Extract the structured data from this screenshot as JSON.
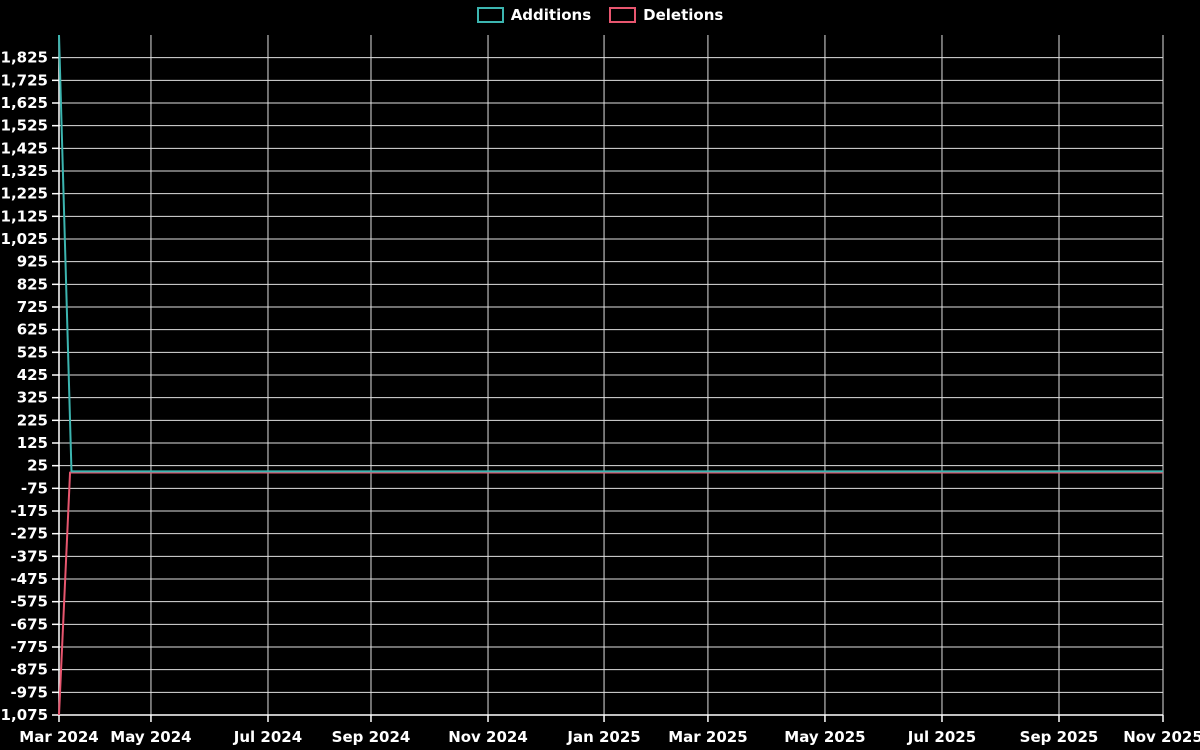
{
  "legend": {
    "position": "top-center",
    "items": [
      {
        "label": "Additions",
        "color": "#3cb5b0"
      },
      {
        "label": "Deletions",
        "color": "#e8566f"
      }
    ]
  },
  "chart_data": {
    "type": "line",
    "title": "",
    "xlabel": "",
    "ylabel": "",
    "background": "#000000",
    "grid": true,
    "gridline_color": "#e0e0e0",
    "text_color": "#ffffff",
    "legend_position": "top-center",
    "x_axis": {
      "kind": "time",
      "range_start": "Mar 2024",
      "range_end": "Nov 2025",
      "ticks": [
        {
          "label": "Mar 2024",
          "pos": 0
        },
        {
          "label": "May 2024",
          "pos": 0.0833
        },
        {
          "label": "Jul 2024",
          "pos": 0.1893
        },
        {
          "label": "Sep 2024",
          "pos": 0.2826
        },
        {
          "label": "Nov 2024",
          "pos": 0.3886
        },
        {
          "label": "Jan 2025",
          "pos": 0.4937
        },
        {
          "label": "Mar 2025",
          "pos": 0.5878
        },
        {
          "label": "May 2025",
          "pos": 0.6938
        },
        {
          "label": "Jul 2025",
          "pos": 0.7998
        },
        {
          "label": "Sep 2025",
          "pos": 0.9058
        },
        {
          "label": "Nov 2025",
          "pos": 1
        }
      ]
    },
    "y_axis": {
      "min": -1075,
      "max": 1925,
      "interval": 100,
      "ticks": [
        {
          "v": 1825,
          "label": "1,825"
        },
        {
          "v": 1725,
          "label": "1,725"
        },
        {
          "v": 1625,
          "label": "1,625"
        },
        {
          "v": 1525,
          "label": "1,525"
        },
        {
          "v": 1425,
          "label": "1,425"
        },
        {
          "v": 1325,
          "label": "1,325"
        },
        {
          "v": 1225,
          "label": "1,225"
        },
        {
          "v": 1125,
          "label": "1,125"
        },
        {
          "v": 1025,
          "label": "1,025"
        },
        {
          "v": 925,
          "label": "925"
        },
        {
          "v": 825,
          "label": "825"
        },
        {
          "v": 725,
          "label": "725"
        },
        {
          "v": 625,
          "label": "625"
        },
        {
          "v": 525,
          "label": "525"
        },
        {
          "v": 425,
          "label": "425"
        },
        {
          "v": 325,
          "label": "325"
        },
        {
          "v": 225,
          "label": "225"
        },
        {
          "v": 125,
          "label": "125"
        },
        {
          "v": 25,
          "label": "25"
        },
        {
          "v": -75,
          "label": "-75"
        },
        {
          "v": -175,
          "label": "-175"
        },
        {
          "v": -275,
          "label": "-275"
        },
        {
          "v": -375,
          "label": "-375"
        },
        {
          "v": -475,
          "label": "-475"
        },
        {
          "v": -575,
          "label": "-575"
        },
        {
          "v": -675,
          "label": "-675"
        },
        {
          "v": -775,
          "label": "-775"
        },
        {
          "v": -875,
          "label": "-875"
        },
        {
          "v": -975,
          "label": "-975"
        },
        {
          "v": -1075,
          "label": "-1,075"
        }
      ]
    },
    "series": [
      {
        "name": "Additions",
        "color": "#3cb5b0",
        "summary": "Spike of ~+1,925 in first week of Mar 2024, then ~0 through Nov 2025",
        "points": [
          {
            "x": 0,
            "y": 1925
          },
          {
            "x": 0.0113,
            "y": 0
          },
          {
            "x": 1,
            "y": 0
          }
        ]
      },
      {
        "name": "Deletions",
        "color": "#e8566f",
        "summary": "Spike of ~-1,075 in first week of Mar 2024, then ~0 through Nov 2025",
        "points": [
          {
            "x": 0,
            "y": -1075
          },
          {
            "x": 0.01,
            "y": -5
          },
          {
            "x": 1,
            "y": -5
          }
        ]
      }
    ]
  }
}
